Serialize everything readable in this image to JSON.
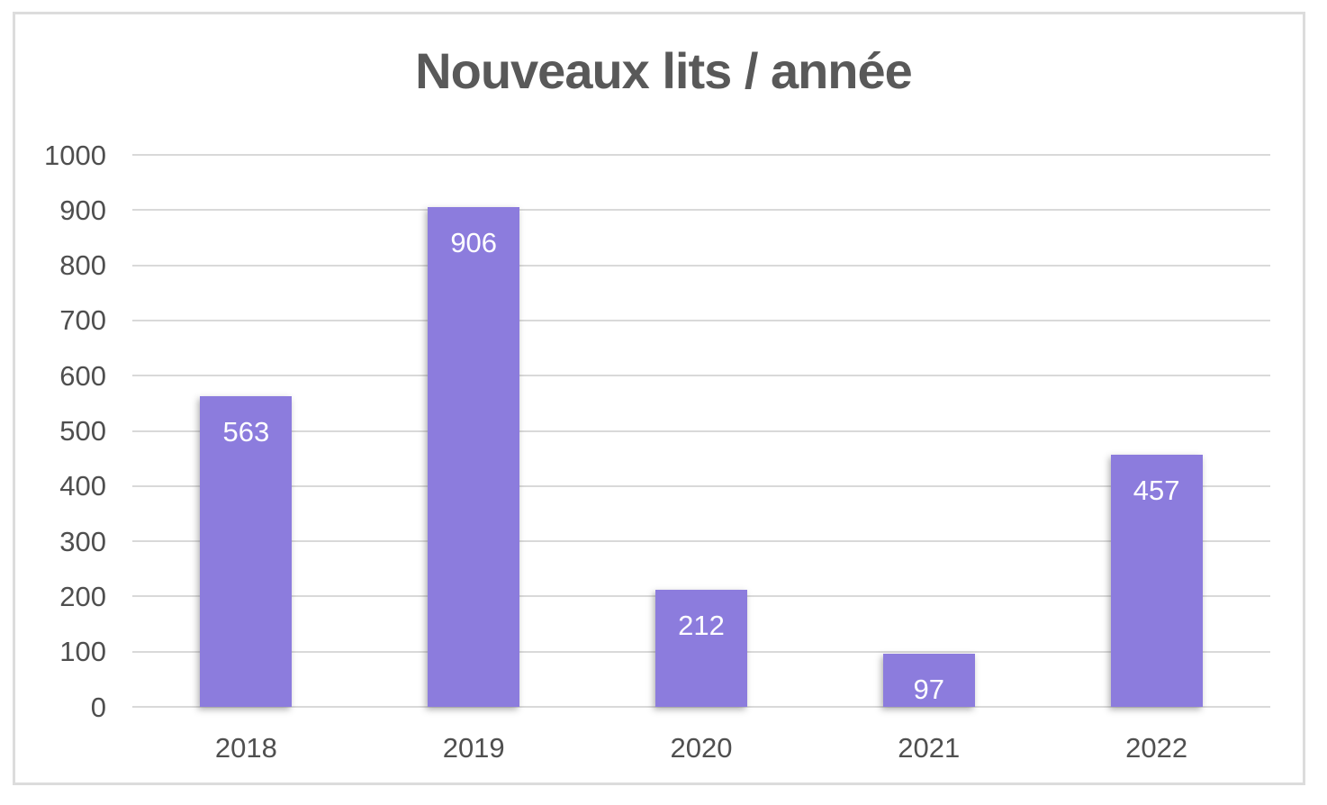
{
  "chart_data": {
    "type": "bar",
    "title": "Nouveaux lits / année",
    "categories": [
      "2018",
      "2019",
      "2020",
      "2021",
      "2022"
    ],
    "values": [
      563,
      906,
      212,
      97,
      457
    ],
    "data_labels": [
      563,
      906,
      212,
      97,
      457
    ],
    "xlabel": "",
    "ylabel": "",
    "ylim": [
      0,
      1000
    ],
    "yticks": [
      0,
      100,
      200,
      300,
      400,
      500,
      600,
      700,
      800,
      900,
      1000
    ],
    "grid": true,
    "legend": "none"
  },
  "colors": {
    "bar": "#8c7cdd",
    "gridline": "#d9d9d9",
    "axis_text": "#4f4f4f",
    "title_text": "#595959",
    "data_label_text": "#ffffff",
    "frame_border": "#dcdcdc",
    "background": "#ffffff"
  }
}
